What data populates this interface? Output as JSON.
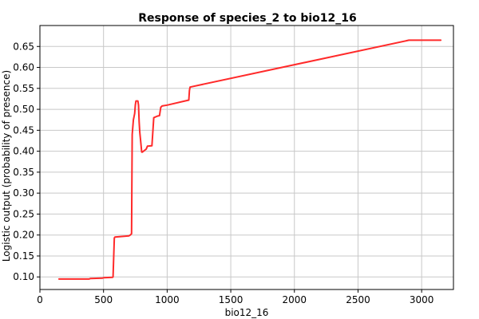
{
  "chart_data": {
    "type": "line",
    "title": "Response of species_2 to bio12_16",
    "xlabel": "bio12_16",
    "ylabel": "Logistic output (probability of presence)",
    "xlim": [
      0,
      3250
    ],
    "ylim": [
      0.07,
      0.7
    ],
    "grid": true,
    "x_ticks": [
      0,
      500,
      1000,
      1500,
      2000,
      2500,
      3000
    ],
    "x_tick_labels": [
      "0",
      "500",
      "1000",
      "1500",
      "2000",
      "2500",
      "3000"
    ],
    "y_ticks": [
      0.1,
      0.15,
      0.2,
      0.25,
      0.3,
      0.35,
      0.4,
      0.45,
      0.5,
      0.55,
      0.6,
      0.65
    ],
    "y_tick_labels": [
      "0.10",
      "0.15",
      "0.20",
      "0.25",
      "0.30",
      "0.35",
      "0.40",
      "0.45",
      "0.50",
      "0.55",
      "0.60",
      "0.65"
    ],
    "colors": {
      "line": "#ff2a2a",
      "grid": "#c8c8c8",
      "axes": "#000000"
    },
    "series": [
      {
        "x": [
          150,
          385,
          395,
          490,
          500,
          570,
          575,
          585,
          590,
          700,
          710,
          720,
          725,
          735,
          745,
          750,
          755,
          770,
          775,
          780,
          785,
          790,
          800,
          805,
          835,
          845,
          880,
          895,
          925,
          940,
          950,
          960,
          1000,
          1170,
          1175,
          1180,
          2900,
          3150
        ],
        "y": [
          0.095,
          0.095,
          0.096,
          0.097,
          0.098,
          0.099,
          0.1,
          0.193,
          0.195,
          0.198,
          0.2,
          0.203,
          0.44,
          0.475,
          0.49,
          0.51,
          0.52,
          0.52,
          0.51,
          0.47,
          0.445,
          0.43,
          0.398,
          0.398,
          0.405,
          0.412,
          0.413,
          0.48,
          0.484,
          0.485,
          0.505,
          0.508,
          0.51,
          0.522,
          0.545,
          0.553,
          0.665,
          0.665
        ]
      }
    ]
  }
}
